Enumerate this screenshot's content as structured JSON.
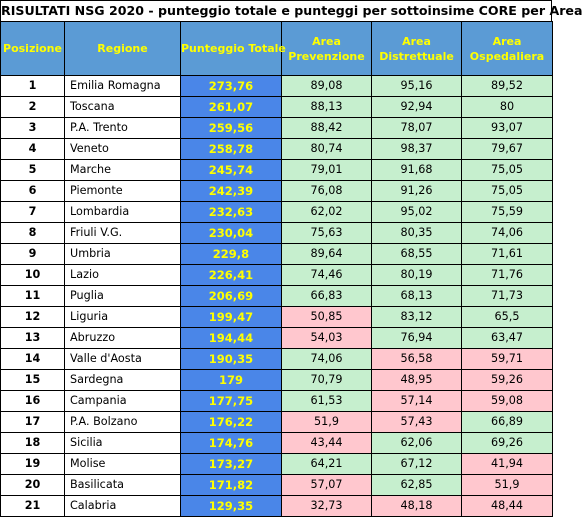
{
  "title": "RISULTATI NSG 2020 - punteggio totale e punteggi per sottoinsime CORE per Area",
  "headers": {
    "posizione": "Posizione",
    "regione": "Regione",
    "totale": "Punteggio Totale",
    "prevenzione": [
      "Area",
      "Prevenzione"
    ],
    "distrettuale": [
      "Area",
      "Distrettuale"
    ],
    "ospedaliera": [
      "Area",
      "Ospedaliera"
    ]
  },
  "colors": {
    "header_bg": "#5b9bd5",
    "header_text": "#ffff00",
    "total_bg": "#4a86e8",
    "above_threshold": "#c6efce",
    "below_threshold": "#ffc7ce"
  },
  "rows": [
    {
      "pos": "1",
      "regione": "Emilia Romagna",
      "totale": "273,76",
      "prev": "89,08",
      "dist": "95,16",
      "osp": "89,52",
      "status": [
        "green",
        "green",
        "green"
      ]
    },
    {
      "pos": "2",
      "regione": "Toscana",
      "totale": "261,07",
      "prev": "88,13",
      "dist": "92,94",
      "osp": "80",
      "status": [
        "green",
        "green",
        "green"
      ]
    },
    {
      "pos": "3",
      "regione": "P.A. Trento",
      "totale": "259,56",
      "prev": "88,42",
      "dist": "78,07",
      "osp": "93,07",
      "status": [
        "green",
        "green",
        "green"
      ]
    },
    {
      "pos": "4",
      "regione": "Veneto",
      "totale": "258,78",
      "prev": "80,74",
      "dist": "98,37",
      "osp": "79,67",
      "status": [
        "green",
        "green",
        "green"
      ]
    },
    {
      "pos": "5",
      "regione": "Marche",
      "totale": "245,74",
      "prev": "79,01",
      "dist": "91,68",
      "osp": "75,05",
      "status": [
        "green",
        "green",
        "green"
      ]
    },
    {
      "pos": "6",
      "regione": "Piemonte",
      "totale": "242,39",
      "prev": "76,08",
      "dist": "91,26",
      "osp": "75,05",
      "status": [
        "green",
        "green",
        "green"
      ]
    },
    {
      "pos": "7",
      "regione": "Lombardia",
      "totale": "232,63",
      "prev": "62,02",
      "dist": "95,02",
      "osp": "75,59",
      "status": [
        "green",
        "green",
        "green"
      ]
    },
    {
      "pos": "8",
      "regione": "Friuli V.G.",
      "totale": "230,04",
      "prev": "75,63",
      "dist": "80,35",
      "osp": "74,06",
      "status": [
        "green",
        "green",
        "green"
      ]
    },
    {
      "pos": "9",
      "regione": "Umbria",
      "totale": "229,8",
      "prev": "89,64",
      "dist": "68,55",
      "osp": "71,61",
      "status": [
        "green",
        "green",
        "green"
      ]
    },
    {
      "pos": "10",
      "regione": "Lazio",
      "totale": "226,41",
      "prev": "74,46",
      "dist": "80,19",
      "osp": "71,76",
      "status": [
        "green",
        "green",
        "green"
      ]
    },
    {
      "pos": "11",
      "regione": "Puglia",
      "totale": "206,69",
      "prev": "66,83",
      "dist": "68,13",
      "osp": "71,73",
      "status": [
        "green",
        "green",
        "green"
      ]
    },
    {
      "pos": "12",
      "regione": "Liguria",
      "totale": "199,47",
      "prev": "50,85",
      "dist": "83,12",
      "osp": "65,5",
      "status": [
        "red",
        "green",
        "green"
      ]
    },
    {
      "pos": "13",
      "regione": "Abruzzo",
      "totale": "194,44",
      "prev": "54,03",
      "dist": "76,94",
      "osp": "63,47",
      "status": [
        "red",
        "green",
        "green"
      ]
    },
    {
      "pos": "14",
      "regione": "Valle d'Aosta",
      "totale": "190,35",
      "prev": "74,06",
      "dist": "56,58",
      "osp": "59,71",
      "status": [
        "green",
        "red",
        "red"
      ]
    },
    {
      "pos": "15",
      "regione": "Sardegna",
      "totale": "179",
      "prev": "70,79",
      "dist": "48,95",
      "osp": "59,26",
      "status": [
        "green",
        "red",
        "red"
      ]
    },
    {
      "pos": "16",
      "regione": "Campania",
      "totale": "177,75",
      "prev": "61,53",
      "dist": "57,14",
      "osp": "59,08",
      "status": [
        "green",
        "red",
        "red"
      ]
    },
    {
      "pos": "17",
      "regione": "P.A. Bolzano",
      "totale": "176,22",
      "prev": "51,9",
      "dist": "57,43",
      "osp": "66,89",
      "status": [
        "red",
        "red",
        "green"
      ]
    },
    {
      "pos": "18",
      "regione": "Sicilia",
      "totale": "174,76",
      "prev": "43,44",
      "dist": "62,06",
      "osp": "69,26",
      "status": [
        "red",
        "green",
        "green"
      ]
    },
    {
      "pos": "19",
      "regione": "Molise",
      "totale": "173,27",
      "prev": "64,21",
      "dist": "67,12",
      "osp": "41,94",
      "status": [
        "green",
        "green",
        "red"
      ]
    },
    {
      "pos": "20",
      "regione": "Basilicata",
      "totale": "171,82",
      "prev": "57,07",
      "dist": "62,85",
      "osp": "51,9",
      "status": [
        "red",
        "green",
        "red"
      ]
    },
    {
      "pos": "21",
      "regione": "Calabria",
      "totale": "129,35",
      "prev": "32,73",
      "dist": "48,18",
      "osp": "48,44",
      "status": [
        "red",
        "red",
        "red"
      ]
    }
  ]
}
